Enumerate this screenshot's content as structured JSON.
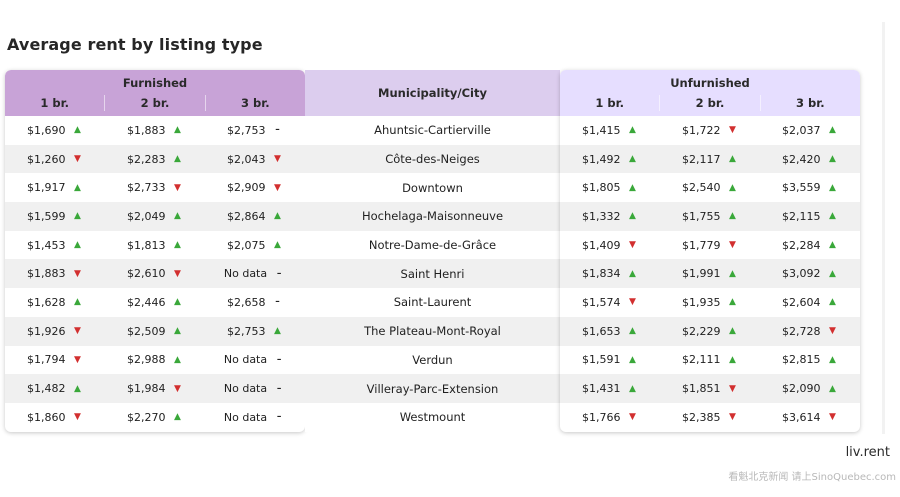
{
  "title": "Average rent by listing type",
  "headers": {
    "furnished": "Furnished",
    "municipality": "Municipality/City",
    "unfurnished": "Unfurnished",
    "sub": [
      "1 br.",
      "2 br.",
      "3 br."
    ]
  },
  "colors": {
    "furnished_header": "#c8a3d7",
    "city_header": "#dccdee",
    "unfurnished_header": "#e6deff",
    "up": "#3aa83a",
    "down": "#d22f2f"
  },
  "rows": [
    {
      "city": "Ahuntsic-Cartierville",
      "f": [
        [
          "$1,690",
          "up"
        ],
        [
          "$1,883",
          "up"
        ],
        [
          "$2,753",
          "flat"
        ]
      ],
      "u": [
        [
          "$1,415",
          "up"
        ],
        [
          "$1,722",
          "down"
        ],
        [
          "$2,037",
          "up"
        ]
      ]
    },
    {
      "city": "Côte-des-Neiges",
      "f": [
        [
          "$1,260",
          "down"
        ],
        [
          "$2,283",
          "up"
        ],
        [
          "$2,043",
          "down"
        ]
      ],
      "u": [
        [
          "$1,492",
          "up"
        ],
        [
          "$2,117",
          "up"
        ],
        [
          "$2,420",
          "up"
        ]
      ]
    },
    {
      "city": "Downtown",
      "f": [
        [
          "$1,917",
          "up"
        ],
        [
          "$2,733",
          "down"
        ],
        [
          "$2,909",
          "down"
        ]
      ],
      "u": [
        [
          "$1,805",
          "up"
        ],
        [
          "$2,540",
          "up"
        ],
        [
          "$3,559",
          "up"
        ]
      ]
    },
    {
      "city": "Hochelaga-Maisonneuve",
      "f": [
        [
          "$1,599",
          "up"
        ],
        [
          "$2,049",
          "up"
        ],
        [
          "$2,864",
          "up"
        ]
      ],
      "u": [
        [
          "$1,332",
          "up"
        ],
        [
          "$1,755",
          "up"
        ],
        [
          "$2,115",
          "up"
        ]
      ]
    },
    {
      "city": "Notre-Dame-de-Grâce",
      "f": [
        [
          "$1,453",
          "up"
        ],
        [
          "$1,813",
          "up"
        ],
        [
          "$2,075",
          "up"
        ]
      ],
      "u": [
        [
          "$1,409",
          "down"
        ],
        [
          "$1,779",
          "down"
        ],
        [
          "$2,284",
          "up"
        ]
      ]
    },
    {
      "city": "Saint Henri",
      "f": [
        [
          "$1,883",
          "down"
        ],
        [
          "$2,610",
          "down"
        ],
        [
          "No data",
          "flat"
        ]
      ],
      "u": [
        [
          "$1,834",
          "up"
        ],
        [
          "$1,991",
          "up"
        ],
        [
          "$3,092",
          "up"
        ]
      ]
    },
    {
      "city": "Saint-Laurent",
      "f": [
        [
          "$1,628",
          "up"
        ],
        [
          "$2,446",
          "up"
        ],
        [
          "$2,658",
          "flat"
        ]
      ],
      "u": [
        [
          "$1,574",
          "down"
        ],
        [
          "$1,935",
          "up"
        ],
        [
          "$2,604",
          "up"
        ]
      ]
    },
    {
      "city": "The Plateau-Mont-Royal",
      "f": [
        [
          "$1,926",
          "down"
        ],
        [
          "$2,509",
          "up"
        ],
        [
          "$2,753",
          "up"
        ]
      ],
      "u": [
        [
          "$1,653",
          "up"
        ],
        [
          "$2,229",
          "up"
        ],
        [
          "$2,728",
          "down"
        ]
      ]
    },
    {
      "city": "Verdun",
      "f": [
        [
          "$1,794",
          "down"
        ],
        [
          "$2,988",
          "up"
        ],
        [
          "No data",
          "flat"
        ]
      ],
      "u": [
        [
          "$1,591",
          "up"
        ],
        [
          "$2,111",
          "up"
        ],
        [
          "$2,815",
          "up"
        ]
      ]
    },
    {
      "city": "Villeray-Parc-Extension",
      "f": [
        [
          "$1,482",
          "up"
        ],
        [
          "$1,984",
          "down"
        ],
        [
          "No data",
          "flat"
        ]
      ],
      "u": [
        [
          "$1,431",
          "up"
        ],
        [
          "$1,851",
          "down"
        ],
        [
          "$2,090",
          "up"
        ]
      ]
    },
    {
      "city": "Westmount",
      "f": [
        [
          "$1,860",
          "down"
        ],
        [
          "$2,270",
          "up"
        ],
        [
          "No data",
          "flat"
        ]
      ],
      "u": [
        [
          "$1,766",
          "down"
        ],
        [
          "$2,385",
          "down"
        ],
        [
          "$3,614",
          "down"
        ]
      ]
    }
  ],
  "brand": "liv.rent",
  "watermark": "看魁北克新闻 请上SinoQuebec.com"
}
